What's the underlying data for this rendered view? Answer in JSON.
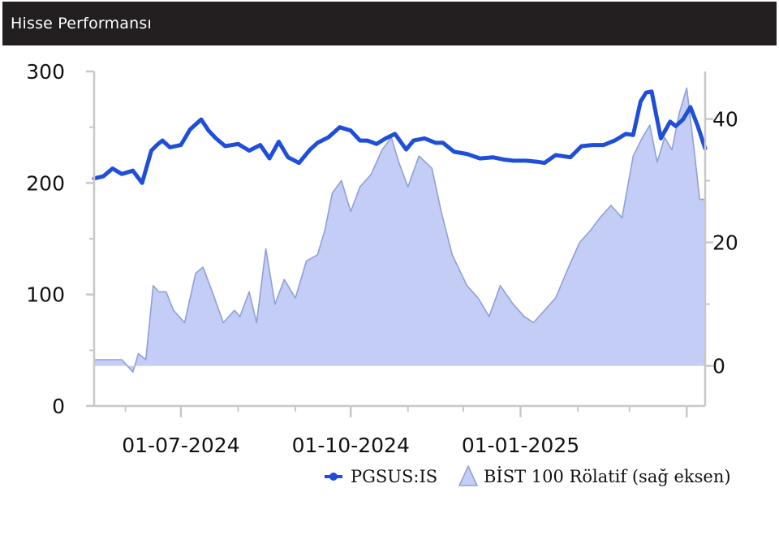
{
  "header": {
    "title": "Hisse Performansı"
  },
  "colors": {
    "header_bg": "#231f20",
    "price_line": "#1f4fd8",
    "relative_fill": "#c3cdf5",
    "relative_stroke": "#8fa0d8",
    "axis": "#c8c8c8"
  },
  "chart_data": {
    "type": "line",
    "title": "",
    "xlabel": "",
    "ylabel": "",
    "x_tick_labels": [
      "01-07-2024",
      "01-10-2024",
      "01-01-2025"
    ],
    "x_range": [
      "2024-05-15",
      "2025-04-11"
    ],
    "left_axis": {
      "ticks": [
        0,
        100,
        200,
        300
      ],
      "ylim": [
        0,
        300
      ]
    },
    "right_axis": {
      "ticks": [
        0,
        20,
        40
      ],
      "ylim": [
        -6.5,
        47.7
      ]
    },
    "legend_position": "bottom-right",
    "grid": false,
    "series": [
      {
        "name": "PGSUS:IS",
        "type": "line",
        "axis": "left",
        "x": [
          "2024-05-15",
          "2024-05-20",
          "2024-05-25",
          "2024-05-30",
          "2024-06-05",
          "2024-06-10",
          "2024-06-15",
          "2024-06-18",
          "2024-06-21",
          "2024-06-25",
          "2024-07-01",
          "2024-07-06",
          "2024-07-12",
          "2024-07-16",
          "2024-07-20",
          "2024-07-25",
          "2024-08-01",
          "2024-08-07",
          "2024-08-13",
          "2024-08-18",
          "2024-08-23",
          "2024-08-28",
          "2024-09-03",
          "2024-09-09",
          "2024-09-13",
          "2024-09-19",
          "2024-09-25",
          "2024-10-01",
          "2024-10-06",
          "2024-10-10",
          "2024-10-15",
          "2024-10-20",
          "2024-10-25",
          "2024-10-31",
          "2024-11-04",
          "2024-11-10",
          "2024-11-16",
          "2024-11-20",
          "2024-11-26",
          "2024-12-03",
          "2024-12-10",
          "2024-12-17",
          "2024-12-23",
          "2024-12-28",
          "2025-01-04",
          "2025-01-10",
          "2025-01-14",
          "2025-01-20",
          "2025-01-28",
          "2025-02-03",
          "2025-02-09",
          "2025-02-15",
          "2025-02-21",
          "2025-02-27",
          "2025-03-03",
          "2025-03-07",
          "2025-03-10",
          "2025-03-13",
          "2025-03-18",
          "2025-03-23",
          "2025-03-26",
          "2025-03-30",
          "2025-04-03",
          "2025-04-07",
          "2025-04-11"
        ],
        "y": [
          204,
          206,
          213,
          208,
          211,
          200,
          229,
          234,
          238,
          232,
          234,
          248,
          257,
          247,
          240,
          233,
          235,
          229,
          234,
          222,
          237,
          223,
          218,
          230,
          236,
          241,
          250,
          247,
          238,
          238,
          235,
          240,
          244,
          230,
          238,
          240,
          236,
          236,
          228,
          226,
          222,
          223,
          221,
          220,
          220,
          219,
          218,
          225,
          223,
          233,
          234,
          234,
          238,
          244,
          243,
          273,
          281,
          282,
          240,
          255,
          251,
          257,
          268,
          251,
          231
        ]
      },
      {
        "name": "BİST 100 Rölatif (sağ eksen)",
        "type": "area",
        "axis": "right",
        "x": [
          "2024-05-15",
          "2024-05-20",
          "2024-05-25",
          "2024-05-30",
          "2024-06-05",
          "2024-06-08",
          "2024-06-12",
          "2024-06-16",
          "2024-06-19",
          "2024-06-23",
          "2024-06-27",
          "2024-07-03",
          "2024-07-09",
          "2024-07-13",
          "2024-07-18",
          "2024-07-24",
          "2024-07-30",
          "2024-08-02",
          "2024-08-07",
          "2024-08-11",
          "2024-08-16",
          "2024-08-21",
          "2024-08-26",
          "2024-09-01",
          "2024-09-07",
          "2024-09-13",
          "2024-09-17",
          "2024-09-21",
          "2024-09-26",
          "2024-10-01",
          "2024-10-06",
          "2024-10-12",
          "2024-10-18",
          "2024-10-23",
          "2024-10-27",
          "2024-11-01",
          "2024-11-07",
          "2024-11-14",
          "2024-11-19",
          "2024-11-25",
          "2024-12-03",
          "2024-12-09",
          "2024-12-15",
          "2024-12-21",
          "2024-12-28",
          "2025-01-03",
          "2025-01-08",
          "2025-01-14",
          "2025-01-20",
          "2025-01-27",
          "2025-02-02",
          "2025-02-08",
          "2025-02-13",
          "2025-02-19",
          "2025-02-25",
          "2025-03-03",
          "2025-03-08",
          "2025-03-12",
          "2025-03-16",
          "2025-03-20",
          "2025-03-24",
          "2025-03-28",
          "2025-04-01",
          "2025-04-05",
          "2025-04-08",
          "2025-04-11"
        ],
        "y": [
          1,
          1,
          1,
          1,
          -1,
          2,
          1,
          13,
          12,
          12,
          9,
          7,
          15,
          16,
          12,
          7,
          9,
          8,
          12,
          7,
          19,
          10,
          14,
          11,
          17,
          18,
          22,
          28,
          30,
          25,
          29,
          31,
          35,
          37,
          33,
          29,
          34,
          32,
          25,
          18,
          13,
          11,
          8,
          13,
          10,
          8,
          7,
          9,
          11,
          16,
          20,
          22,
          24,
          26,
          24,
          34,
          37,
          39,
          33,
          37,
          35,
          41,
          45,
          35,
          27,
          27
        ]
      }
    ]
  }
}
